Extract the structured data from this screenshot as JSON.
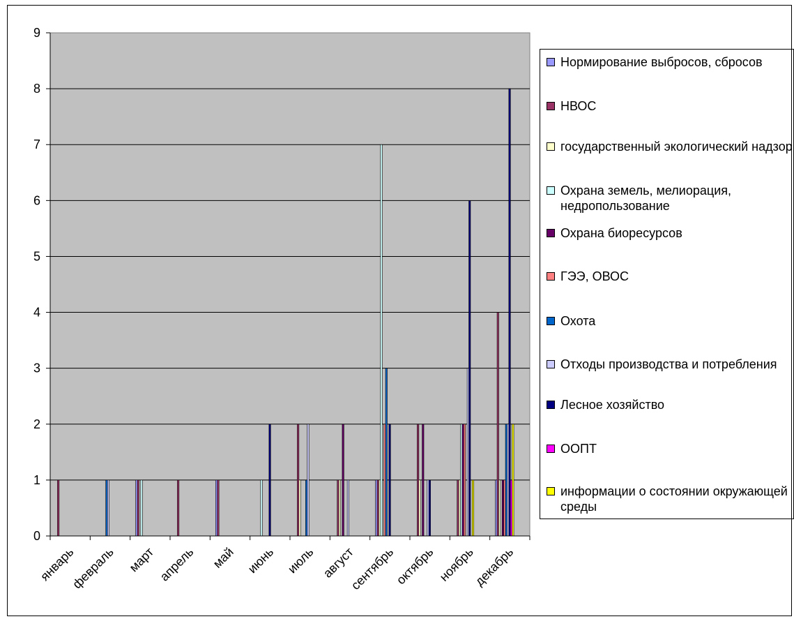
{
  "chart_data": {
    "type": "bar",
    "title": "",
    "xlabel": "",
    "ylabel": "",
    "ylim": [
      0,
      9
    ],
    "yticks": [
      "0",
      "1",
      "2",
      "3",
      "4",
      "5",
      "6",
      "7",
      "8",
      "9"
    ],
    "grid": "horizontal",
    "legend_position": "right",
    "plot_background": "#c0c0c0",
    "categories": [
      "январь",
      "февраль",
      "март",
      "апрель",
      "май",
      "июнь",
      "июль",
      "август",
      "сентябрь",
      "октябрь",
      "ноябрь",
      "декабрь"
    ],
    "series": [
      {
        "name": "Нормирование выбросов, сбросов",
        "color": "#9999ff",
        "values": [
          0,
          0,
          1,
          0,
          1,
          0,
          0,
          0,
          1,
          0,
          0,
          1
        ]
      },
      {
        "name": "НВОС",
        "color": "#993366",
        "values": [
          1,
          0,
          1,
          1,
          1,
          0,
          2,
          1,
          1,
          2,
          1,
          4
        ]
      },
      {
        "name": "государственный экологический надзор",
        "color": "#ffffcc",
        "values": [
          0,
          0,
          0,
          0,
          0,
          0,
          1,
          1,
          1,
          1,
          1,
          1
        ]
      },
      {
        "name": "Охрана земель, мелиорация, недропользование",
        "color": "#ccffff",
        "values": [
          0,
          0,
          1,
          0,
          0,
          1,
          0,
          0,
          7,
          0,
          2,
          0
        ]
      },
      {
        "name": "Охрана биоресурсов",
        "color": "#660066",
        "values": [
          0,
          0,
          0,
          0,
          0,
          0,
          0,
          2,
          0,
          2,
          2,
          1
        ]
      },
      {
        "name": "ГЭЭ, ОВОС",
        "color": "#ff8080",
        "values": [
          0,
          0,
          0,
          0,
          0,
          0,
          0,
          0,
          2,
          0,
          2,
          1
        ]
      },
      {
        "name": "Охота",
        "color": "#0066cc",
        "values": [
          0,
          1,
          0,
          0,
          0,
          0,
          1,
          0,
          3,
          0,
          0,
          2
        ]
      },
      {
        "name": "Отходы производства и потребления",
        "color": "#ccccff",
        "values": [
          0,
          1,
          0,
          0,
          0,
          0,
          2,
          1,
          0,
          1,
          3,
          2
        ]
      },
      {
        "name": "Лесное хозяйство",
        "color": "#000080",
        "values": [
          0,
          0,
          0,
          0,
          0,
          2,
          0,
          0,
          2,
          1,
          6,
          8
        ]
      },
      {
        "name": "ООПТ",
        "color": "#ff00ff",
        "values": [
          0,
          0,
          0,
          0,
          0,
          0,
          0,
          0,
          0,
          0,
          0,
          1
        ]
      },
      {
        "name": "информации о состоянии окружающей среды",
        "color": "#ffff00",
        "values": [
          0,
          0,
          0,
          0,
          0,
          0,
          0,
          0,
          0,
          0,
          1,
          2
        ]
      }
    ]
  }
}
